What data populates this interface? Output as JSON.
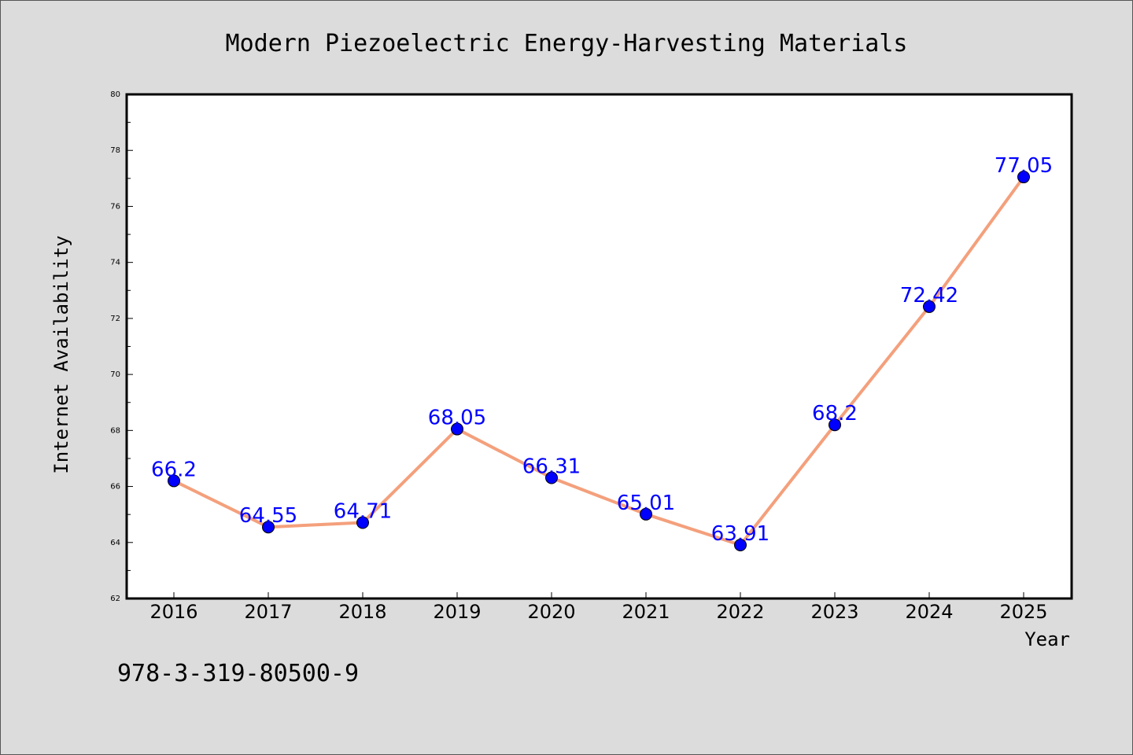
{
  "chart_data": {
    "type": "line",
    "title": "Modern Piezoelectric Energy-Harvesting Materials",
    "xlabel": "Year",
    "ylabel": "Internet Availability",
    "categories": [
      "2016",
      "2017",
      "2018",
      "2019",
      "2020",
      "2021",
      "2022",
      "2023",
      "2024",
      "2025"
    ],
    "series": [
      {
        "values": [
          66.2,
          64.55,
          64.71,
          68.05,
          66.31,
          65.01,
          63.91,
          68.2,
          72.42,
          77.05
        ],
        "labels": [
          "66.2",
          "64.55",
          "64.71",
          "68.05",
          "66.31",
          "65.01",
          "63.91",
          "68.2",
          "72.42",
          "77.05"
        ]
      }
    ],
    "ylim": [
      62,
      80
    ],
    "yticks": [
      "62",
      "64",
      "66",
      "68",
      "70",
      "72",
      "74",
      "76",
      "78",
      "80"
    ],
    "grid": false,
    "line_color": "#f4a07c",
    "marker_color": "#0000ff",
    "label_color": "#0000ff",
    "background_color": "#dcdcdc",
    "plot_background_color": "#ffffff"
  },
  "footer": {
    "isbn": "978-3-319-80500-9"
  }
}
